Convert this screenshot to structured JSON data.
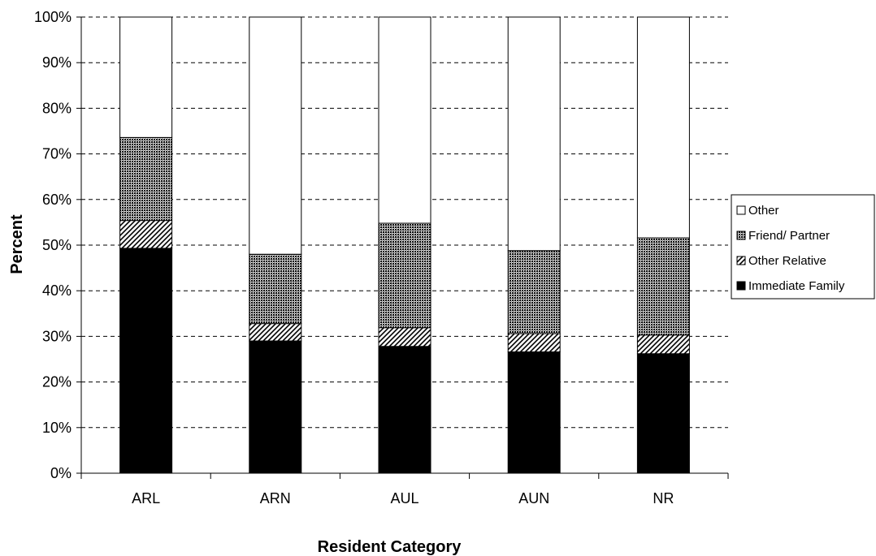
{
  "chart_data": {
    "type": "bar",
    "stacked": true,
    "percent_stacked": true,
    "title": "",
    "xlabel": "Resident Category",
    "ylabel": "Percent",
    "categories": [
      "ARL",
      "ARN",
      "AUL",
      "AUN",
      "NR"
    ],
    "ylim": [
      0,
      100
    ],
    "yticks": [
      "0%",
      "10%",
      "20%",
      "30%",
      "40%",
      "50%",
      "60%",
      "70%",
      "80%",
      "90%",
      "100%"
    ],
    "grid": "horizontal-dashed",
    "legend_position": "right",
    "series": [
      {
        "name": "Immediate Family",
        "pattern": "solid-black",
        "values": [
          49.3,
          29.0,
          27.8,
          26.6,
          26.2
        ]
      },
      {
        "name": "Other Relative",
        "pattern": "diagonal-hatch",
        "values": [
          6.1,
          3.8,
          4.1,
          4.0,
          4.1
        ]
      },
      {
        "name": "Friend/ Partner",
        "pattern": "dense-dots",
        "values": [
          18.2,
          15.2,
          22.9,
          18.2,
          21.3
        ]
      },
      {
        "name": "Other",
        "pattern": "white",
        "values": [
          26.4,
          52.0,
          45.2,
          51.2,
          48.4
        ]
      }
    ],
    "legend_order": [
      "Other",
      "Friend/ Partner",
      "Other Relative",
      "Immediate Family"
    ],
    "colors": {
      "solid": "#000000",
      "background": "#ffffff",
      "stroke": "#000000"
    }
  }
}
